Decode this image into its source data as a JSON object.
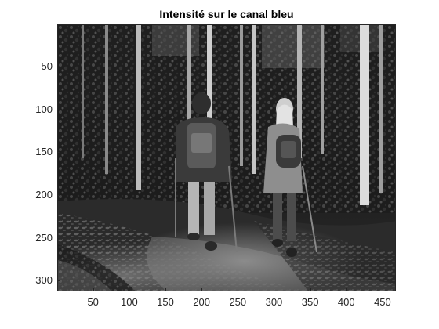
{
  "figure": {
    "title": "Intensité sur le canal bleu",
    "image_description_icon": "grayscale-photo-hikers-forest-path",
    "colors": {
      "axis": "#262626",
      "background": "#ffffff"
    }
  },
  "chart_data": {
    "type": "image",
    "title": "Intensité sur le canal bleu",
    "xlabel": "",
    "ylabel": "",
    "xlim": [
      0.5,
      468.5
    ],
    "ylim": [
      0.5,
      312.5
    ],
    "y_reversed": true,
    "xticks": [
      50,
      100,
      150,
      200,
      250,
      300,
      350,
      400,
      450
    ],
    "xtick_labels": [
      "50",
      "100",
      "150",
      "200",
      "250",
      "300",
      "350",
      "400",
      "450"
    ],
    "yticks": [
      50,
      100,
      150,
      200,
      250,
      300
    ],
    "ytick_labels": [
      "50",
      "100",
      "150",
      "200",
      "250",
      "300"
    ],
    "colormap": "gray"
  }
}
